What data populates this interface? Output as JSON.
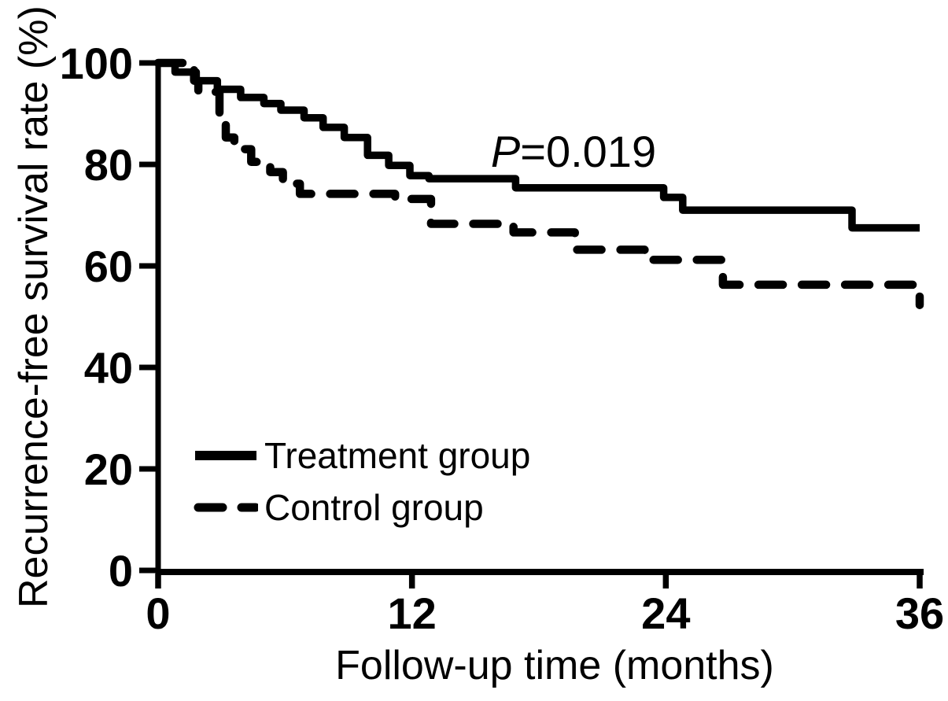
{
  "figure": {
    "background": "#ffffff",
    "ink_color": "#000000"
  },
  "chart_data": {
    "type": "line",
    "subtype": "kaplan-meier-step",
    "title": "",
    "xlabel": "Follow-up time (months)",
    "ylabel": "Recurrence-free survival rate (%)",
    "xlim": [
      0,
      36
    ],
    "ylim": [
      0,
      100
    ],
    "x_ticks": [
      0,
      12,
      24,
      36
    ],
    "y_ticks": [
      0,
      20,
      40,
      60,
      80,
      100
    ],
    "grid": false,
    "legend_position": "inside-lower-left",
    "annotation": {
      "text": "P=0.019",
      "symbol": "P",
      "value_text": "=0.019",
      "x_month": 19.5,
      "y_percent": 83
    },
    "series": [
      {
        "name": "Control group",
        "line_style": "dashed",
        "color": "#000000",
        "steps_month_percent": [
          [
            0,
            100
          ],
          [
            1.7,
            96.5
          ],
          [
            1.9,
            94.3
          ],
          [
            2.9,
            88.5
          ],
          [
            3.2,
            85.3
          ],
          [
            3.6,
            83.0
          ],
          [
            4.4,
            80.5
          ],
          [
            5.3,
            78.5
          ],
          [
            5.9,
            76.2
          ],
          [
            6.7,
            74.2
          ],
          [
            11.2,
            73.2
          ],
          [
            12.9,
            68.3
          ],
          [
            16.8,
            66.6
          ],
          [
            19.7,
            63.2
          ],
          [
            23.0,
            61.2
          ],
          [
            26.7,
            56.3
          ],
          [
            36.0,
            52.3
          ]
        ]
      },
      {
        "name": "Treatment group",
        "line_style": "solid",
        "color": "#000000",
        "steps_month_percent": [
          [
            0,
            100
          ],
          [
            0.8,
            98.2
          ],
          [
            1.8,
            96.5
          ],
          [
            2.8,
            94.8
          ],
          [
            3.9,
            93.2
          ],
          [
            5.0,
            92.0
          ],
          [
            5.8,
            90.7
          ],
          [
            6.9,
            89.2
          ],
          [
            7.8,
            87.3
          ],
          [
            8.8,
            85.3
          ],
          [
            9.9,
            81.8
          ],
          [
            10.9,
            79.8
          ],
          [
            11.9,
            77.8
          ],
          [
            12.8,
            77.2
          ],
          [
            16.9,
            75.4
          ],
          [
            23.9,
            73.5
          ],
          [
            24.8,
            71.0
          ],
          [
            32.8,
            67.5
          ]
        ]
      }
    ],
    "legend_order": [
      1,
      0
    ]
  }
}
